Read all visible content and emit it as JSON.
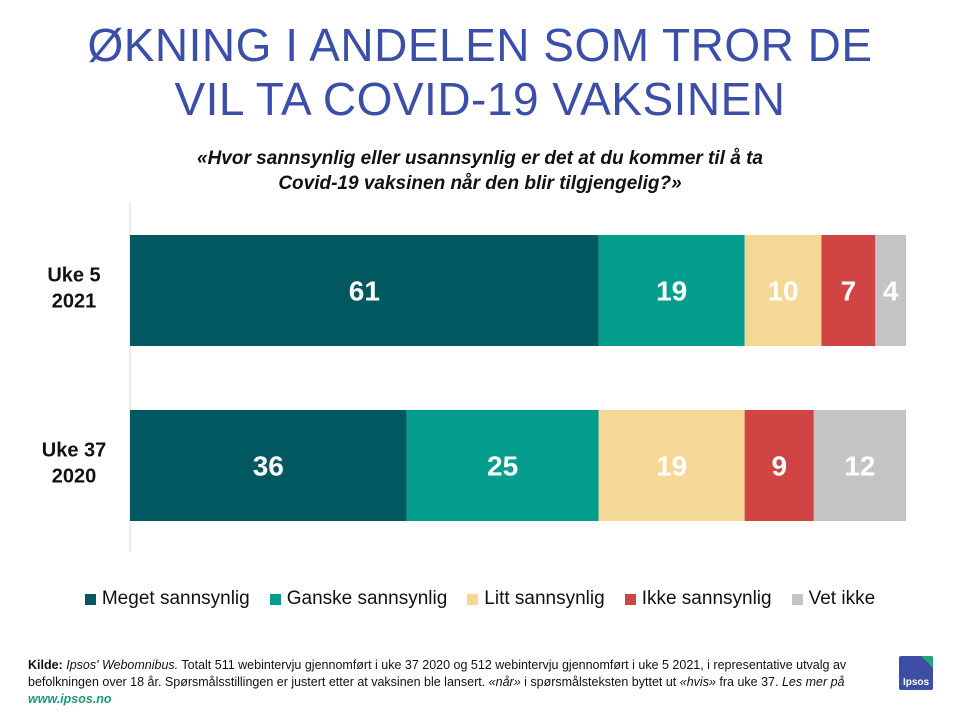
{
  "title_line1": "ØKNING I ANDELEN SOM TROR DE",
  "title_line2": "VIL TA COVID-19 VAKSINEN",
  "subtitle_line1": "«Hvor sannsynlig eller usannsynlig er det at du kommer til å ta",
  "subtitle_line2": "Covid-19 vaksinen når den blir tilgjengelig?»",
  "chart_data": {
    "type": "bar",
    "orientation": "horizontal",
    "stacked": true,
    "categories": [
      "Uke 5\n2021",
      "Uke 37\n2020"
    ],
    "xlim": [
      0,
      101
    ],
    "grid": false,
    "legend_position": "bottom",
    "series": [
      {
        "name": "Meget sannsynlig",
        "color": "#015860",
        "values": [
          61,
          36
        ]
      },
      {
        "name": "Ganske sannsynlig",
        "color": "#029d8c",
        "values": [
          19,
          25
        ]
      },
      {
        "name": "Litt sannsynlig",
        "color": "#f5d896",
        "values": [
          10,
          19
        ]
      },
      {
        "name": "Ikke sannsynlig",
        "color": "#d04443",
        "values": [
          7,
          9
        ]
      },
      {
        "name": "Vet ikke",
        "color": "#c4c4c4",
        "values": [
          4,
          12
        ]
      }
    ]
  },
  "footer": {
    "kilde_label": "Kilde:",
    "source_italic": "Ipsos' Webomnibus.",
    "text_1": "Totalt 511 webintervju gjennomført i uke 37 2020 og  512 webintervju gjennomført i uke 5 2021, i representative utvalg av befolkningen over 18 år.  Spørsmålsstillingen er justert etter at vaksinen ble lansert.",
    "quote_1": "«når»",
    "text_2": "i spørsmålsteksten byttet ut",
    "quote_2": "«hvis»",
    "text_3": "fra uke 37.",
    "read_more": "Les mer på",
    "link": "www.ipsos.no"
  },
  "logo_text": "Ipsos"
}
